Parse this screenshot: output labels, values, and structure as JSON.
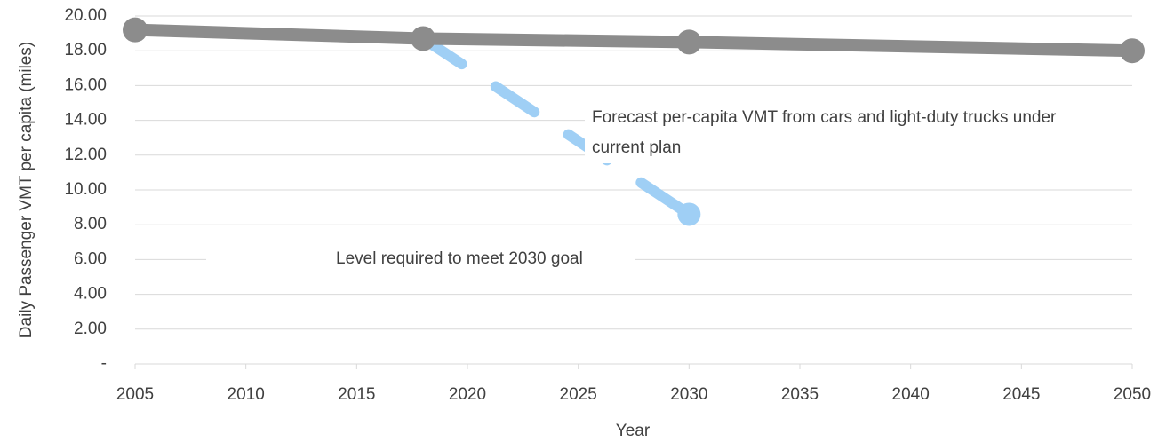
{
  "chart_data": {
    "type": "line",
    "x_label": "Year",
    "y_label": "Daily Passenger  VMT per capita (miles)",
    "xlim": [
      2005,
      2050
    ],
    "xticks": [
      2005,
      2010,
      2015,
      2020,
      2025,
      2030,
      2035,
      2040,
      2045,
      2050
    ],
    "ylim": [
      0,
      20
    ],
    "yticks": [
      {
        "value": 0,
        "label": "-"
      },
      {
        "value": 2,
        "label": "2.00"
      },
      {
        "value": 4,
        "label": "4.00"
      },
      {
        "value": 6,
        "label": "6.00"
      },
      {
        "value": 8,
        "label": "8.00"
      },
      {
        "value": 10,
        "label": "10.00"
      },
      {
        "value": 12,
        "label": "12.00"
      },
      {
        "value": 14,
        "label": "14.00"
      },
      {
        "value": 16,
        "label": "16.00"
      },
      {
        "value": 18,
        "label": "18.00"
      },
      {
        "value": 20,
        "label": "20.00"
      }
    ],
    "grid": true,
    "series": [
      {
        "color": "#9fcff5",
        "dashed": true,
        "x": [
          2018,
          2030
        ],
        "values": [
          18.7,
          8.6
        ],
        "markers": [
          false,
          true
        ]
      },
      {
        "color": "#8c8c8c",
        "dashed": false,
        "x": [
          2005,
          2018,
          2030,
          2050
        ],
        "values": [
          19.2,
          18.7,
          18.5,
          18.0
        ],
        "markers": [
          true,
          true,
          true,
          true
        ]
      }
    ],
    "annotations": [
      {
        "lines": [
          "Forecast per-capita VMT from cars and light-duty trucks under",
          "current plan"
        ]
      },
      {
        "lines": [
          "Level required to meet 2030 goal"
        ]
      }
    ]
  }
}
